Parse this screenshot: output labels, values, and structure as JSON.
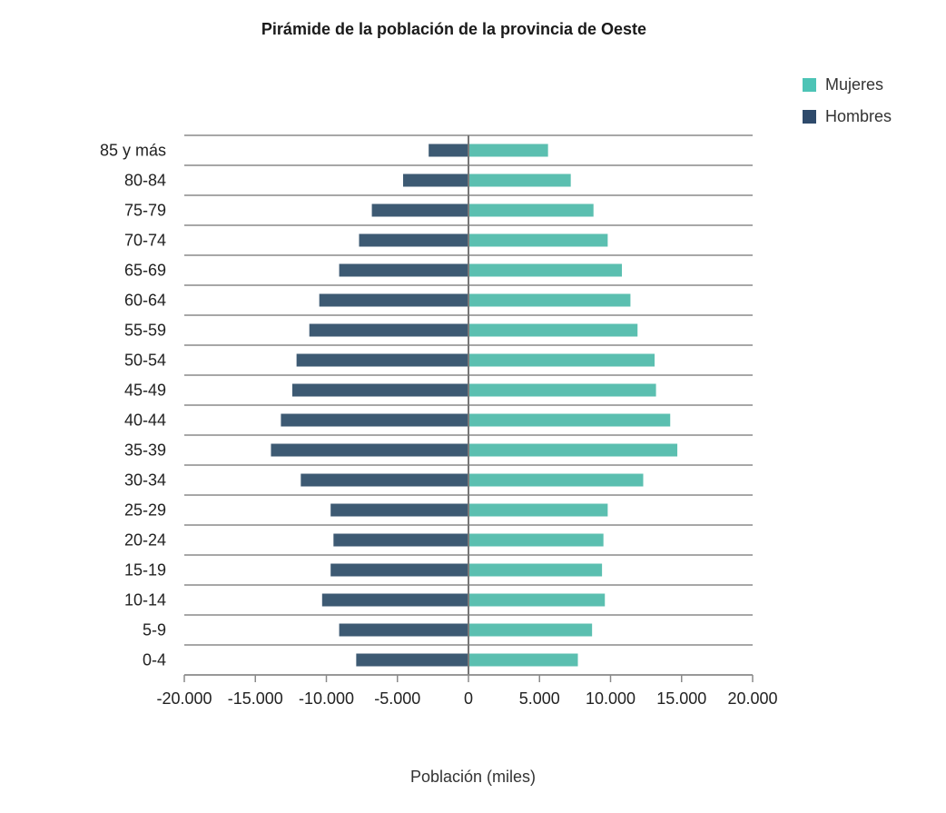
{
  "chart_data": {
    "type": "bar",
    "orientation": "horizontal",
    "title": "Pirámide de la población de la provincia de Oeste",
    "xlabel": "Población (miles)",
    "ylabel": "",
    "categories": [
      "85 y más",
      "80-84",
      "75-79",
      "70-74",
      "65-69",
      "60-64",
      "55-59",
      "50-54",
      "45-49",
      "40-44",
      "35-39",
      "30-34",
      "25-29",
      "20-24",
      "15-19",
      "10-14",
      "5-9",
      "0-4"
    ],
    "series": [
      {
        "name": "Mujeres",
        "color": "#5bbfb0",
        "values": [
          5600,
          7200,
          8800,
          9800,
          10800,
          11400,
          11900,
          13100,
          13200,
          14200,
          14700,
          12300,
          9800,
          9500,
          9400,
          9600,
          8700,
          7700
        ]
      },
      {
        "name": "Hombres",
        "color": "#3d5a73",
        "values": [
          -2800,
          -4600,
          -6800,
          -7700,
          -9100,
          -10500,
          -11200,
          -12100,
          -12400,
          -13200,
          -13900,
          -11800,
          -9700,
          -9500,
          -9700,
          -10300,
          -9100,
          -7900
        ]
      }
    ],
    "xlim": [
      -20000,
      20000
    ],
    "xticks": [
      -20000,
      -15000,
      -10000,
      -5000,
      0,
      5000,
      10000,
      15000,
      20000
    ],
    "xtick_labels": [
      "-20.000",
      "-15.000",
      "-10.000",
      "-5.000",
      "0",
      "5.000",
      "10.000",
      "15.000",
      "20.000"
    ],
    "legend": {
      "position": "top-right",
      "items": [
        "Mujeres",
        "Hombres"
      ]
    },
    "legend_colors": {
      "Mujeres": "#4dc4b6",
      "Hombres": "#2e4a6b"
    },
    "grid": true
  }
}
